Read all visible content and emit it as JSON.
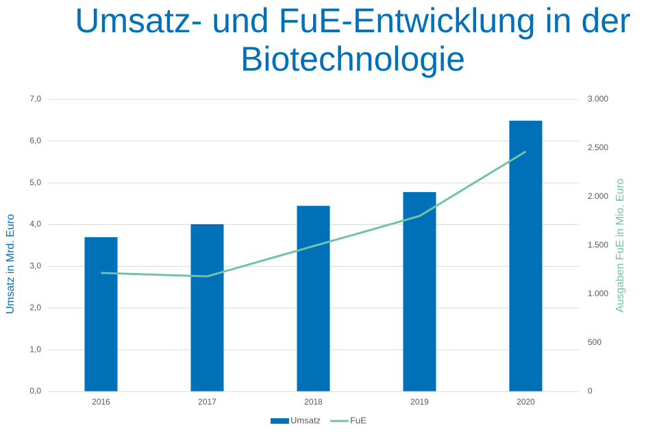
{
  "chart_data": {
    "type": "bar-line",
    "title": "Umsatz- und FuE-Entwicklung in der Biotechnologie",
    "y_label": "Umsatz in Mrd. Euro",
    "y2_label": "Ausgaben FuE in Mio. Euro",
    "categories": [
      "2016",
      "2017",
      "2018",
      "2019",
      "2020"
    ],
    "series": [
      {
        "name": "Umsatz",
        "type": "bar",
        "color": "#0070b8",
        "values": [
          3.7,
          4.01,
          4.45,
          4.78,
          6.49
        ]
      },
      {
        "name": "FuE",
        "type": "line",
        "axis": "y2",
        "color": "#70c4a4",
        "values": [
          1218,
          1183,
          1493,
          1803,
          2465
        ]
      }
    ],
    "ylim": [
      0,
      7
    ],
    "yticks": [
      {
        "value": 0,
        "label": "0,0"
      },
      {
        "value": 1,
        "label": "1,0"
      },
      {
        "value": 2,
        "label": "2,0"
      },
      {
        "value": 3,
        "label": "3,0"
      },
      {
        "value": 4,
        "label": "4,0"
      },
      {
        "value": 5,
        "label": "5,0"
      },
      {
        "value": 6,
        "label": "6,0"
      },
      {
        "value": 7,
        "label": "7,0"
      }
    ],
    "y2lim": [
      0,
      3000
    ],
    "y2ticks": [
      0,
      500,
      {
        "value": 1000,
        "label": "1.000"
      },
      {
        "value": 1500,
        "label": "1.500"
      },
      {
        "value": 2000,
        "label": "2.000"
      },
      {
        "value": 2500,
        "label": "2.500"
      },
      {
        "value": 3000,
        "label": "3.000"
      }
    ],
    "grid": true,
    "legend": "bottom"
  }
}
